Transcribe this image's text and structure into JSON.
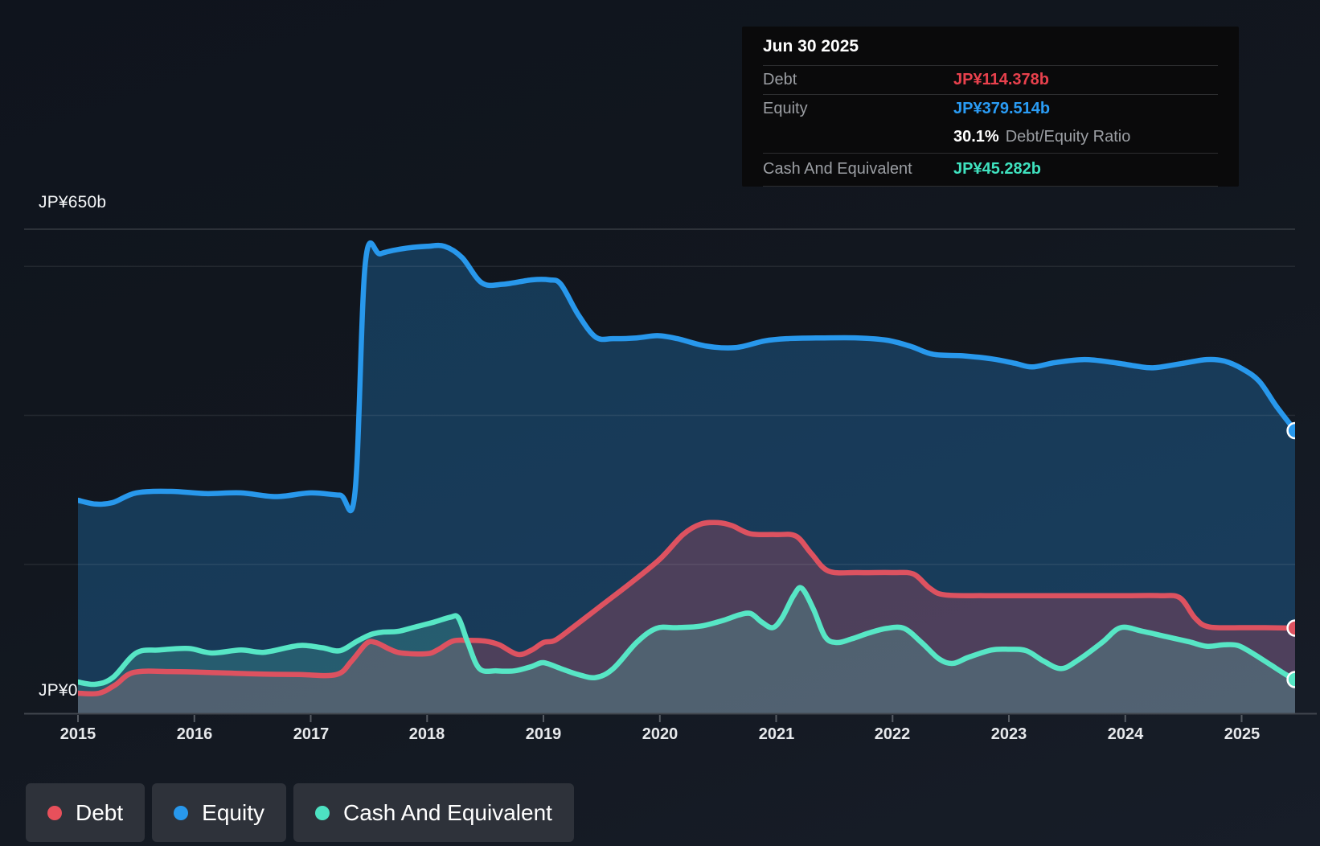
{
  "tooltip": {
    "date": "Jun 30 2025",
    "debt": {
      "label": "Debt",
      "value": "JP¥114.378b"
    },
    "equity": {
      "label": "Equity",
      "value": "JP¥379.514b"
    },
    "ratio": {
      "value": "30.1%",
      "label": "Debt/Equity Ratio"
    },
    "cash": {
      "label": "Cash And Equivalent",
      "value": "JP¥45.282b"
    }
  },
  "axis": {
    "y_top_label": "JP¥650b",
    "y_zero_label": "JP¥0",
    "years": [
      2015,
      2016,
      2017,
      2018,
      2019,
      2020,
      2021,
      2022,
      2023,
      2024,
      2025
    ]
  },
  "legend": {
    "items": [
      {
        "label": "Debt",
        "color": "#e8505b"
      },
      {
        "label": "Equity",
        "color": "#2898ec"
      },
      {
        "label": "Cash And Equivalent",
        "color": "#4de2c2"
      }
    ]
  },
  "colors": {
    "debt_line": "#dd5260",
    "debt_fill": "rgba(222,76,96,0.27)",
    "equity_line": "#2898ec",
    "equity_fill": "rgba(38,140,219,0.30)",
    "cash_line": "#57e6c5",
    "cash_fill": "rgba(95,231,201,0.20)",
    "grid_major": "rgba(255,255,255,0.16)",
    "grid_minor": "rgba(255,255,255,0.08)",
    "axis_line": "#41464e",
    "tick": "#565b63"
  },
  "chart_data": {
    "type": "area",
    "unit": "JP¥ billions",
    "x_range": [
      2015,
      2025.46
    ],
    "y_range": [
      0,
      650
    ],
    "grid": "horizontal gridlines at 650, 600, 400, 200 (JP¥b); x ticks each year",
    "gridlines_b": [
      650,
      600,
      400,
      200
    ],
    "legend_position": "bottom-left",
    "end_markers": true,
    "series": [
      {
        "name": "Equity",
        "final_value_b": 379.514,
        "points": [
          [
            2015.0,
            286
          ],
          [
            2015.15,
            281
          ],
          [
            2015.3,
            283
          ],
          [
            2015.5,
            296
          ],
          [
            2015.8,
            298
          ],
          [
            2016.1,
            295
          ],
          [
            2016.4,
            296
          ],
          [
            2016.7,
            291
          ],
          [
            2017.0,
            296
          ],
          [
            2017.25,
            293
          ],
          [
            2017.38,
            296
          ],
          [
            2017.47,
            605
          ],
          [
            2017.6,
            617
          ],
          [
            2017.8,
            624
          ],
          [
            2018.0,
            627
          ],
          [
            2018.15,
            627
          ],
          [
            2018.3,
            612
          ],
          [
            2018.47,
            578
          ],
          [
            2018.65,
            576
          ],
          [
            2018.9,
            582
          ],
          [
            2019.05,
            582
          ],
          [
            2019.15,
            576
          ],
          [
            2019.3,
            535
          ],
          [
            2019.45,
            505
          ],
          [
            2019.6,
            503
          ],
          [
            2019.8,
            504
          ],
          [
            2019.98,
            507
          ],
          [
            2020.15,
            503
          ],
          [
            2020.4,
            493
          ],
          [
            2020.65,
            491
          ],
          [
            2020.9,
            500
          ],
          [
            2021.1,
            503
          ],
          [
            2021.4,
            504
          ],
          [
            2021.7,
            504
          ],
          [
            2021.95,
            501
          ],
          [
            2022.15,
            493
          ],
          [
            2022.35,
            482
          ],
          [
            2022.6,
            480
          ],
          [
            2022.85,
            476
          ],
          [
            2023.05,
            470
          ],
          [
            2023.2,
            465
          ],
          [
            2023.4,
            471
          ],
          [
            2023.65,
            475
          ],
          [
            2023.9,
            471
          ],
          [
            2024.1,
            466
          ],
          [
            2024.25,
            464
          ],
          [
            2024.5,
            470
          ],
          [
            2024.7,
            475
          ],
          [
            2024.85,
            473
          ],
          [
            2025.0,
            463
          ],
          [
            2025.15,
            446
          ],
          [
            2025.3,
            412
          ],
          [
            2025.46,
            379.5
          ]
        ]
      },
      {
        "name": "Debt",
        "final_value_b": 114.378,
        "points": [
          [
            2015.0,
            27
          ],
          [
            2015.18,
            27
          ],
          [
            2015.32,
            38
          ],
          [
            2015.48,
            55
          ],
          [
            2015.8,
            56
          ],
          [
            2016.1,
            55
          ],
          [
            2016.5,
            53
          ],
          [
            2016.9,
            52
          ],
          [
            2017.22,
            52
          ],
          [
            2017.35,
            70
          ],
          [
            2017.48,
            94
          ],
          [
            2017.56,
            95
          ],
          [
            2017.68,
            86
          ],
          [
            2017.78,
            81
          ],
          [
            2018.0,
            80
          ],
          [
            2018.1,
            86
          ],
          [
            2018.22,
            97
          ],
          [
            2018.35,
            98
          ],
          [
            2018.5,
            97
          ],
          [
            2018.62,
            92
          ],
          [
            2018.78,
            79
          ],
          [
            2018.9,
            85
          ],
          [
            2019.0,
            95
          ],
          [
            2019.1,
            98
          ],
          [
            2019.25,
            115
          ],
          [
            2019.5,
            145
          ],
          [
            2019.75,
            175
          ],
          [
            2020.0,
            207
          ],
          [
            2020.2,
            240
          ],
          [
            2020.35,
            254
          ],
          [
            2020.5,
            256
          ],
          [
            2020.62,
            252
          ],
          [
            2020.78,
            241
          ],
          [
            2021.0,
            240
          ],
          [
            2021.17,
            238
          ],
          [
            2021.3,
            215
          ],
          [
            2021.45,
            191
          ],
          [
            2021.7,
            189
          ],
          [
            2022.0,
            189
          ],
          [
            2022.18,
            187
          ],
          [
            2022.32,
            168
          ],
          [
            2022.45,
            159
          ],
          [
            2022.8,
            158
          ],
          [
            2023.2,
            158
          ],
          [
            2023.6,
            158
          ],
          [
            2024.0,
            158
          ],
          [
            2024.3,
            158
          ],
          [
            2024.47,
            155
          ],
          [
            2024.6,
            128
          ],
          [
            2024.72,
            116
          ],
          [
            2025.0,
            115
          ],
          [
            2025.2,
            115
          ],
          [
            2025.46,
            114.4
          ]
        ]
      },
      {
        "name": "Cash And Equivalent",
        "final_value_b": 45.282,
        "points": [
          [
            2015.0,
            42
          ],
          [
            2015.15,
            39
          ],
          [
            2015.3,
            48
          ],
          [
            2015.5,
            81
          ],
          [
            2015.7,
            85
          ],
          [
            2015.95,
            87
          ],
          [
            2016.15,
            81
          ],
          [
            2016.4,
            85
          ],
          [
            2016.6,
            82
          ],
          [
            2016.9,
            91
          ],
          [
            2017.1,
            88
          ],
          [
            2017.25,
            84
          ],
          [
            2017.4,
            97
          ],
          [
            2017.52,
            106
          ],
          [
            2017.62,
            109
          ],
          [
            2017.75,
            110
          ],
          [
            2017.9,
            116
          ],
          [
            2018.05,
            122
          ],
          [
            2018.2,
            129
          ],
          [
            2018.27,
            128
          ],
          [
            2018.35,
            95
          ],
          [
            2018.45,
            60
          ],
          [
            2018.6,
            57
          ],
          [
            2018.75,
            57
          ],
          [
            2018.9,
            63
          ],
          [
            2019.0,
            68
          ],
          [
            2019.15,
            60
          ],
          [
            2019.3,
            52
          ],
          [
            2019.45,
            48
          ],
          [
            2019.6,
            60
          ],
          [
            2019.8,
            95
          ],
          [
            2019.97,
            114
          ],
          [
            2020.15,
            115
          ],
          [
            2020.35,
            117
          ],
          [
            2020.55,
            125
          ],
          [
            2020.68,
            132
          ],
          [
            2020.78,
            134
          ],
          [
            2020.88,
            122
          ],
          [
            2020.97,
            115
          ],
          [
            2021.05,
            128
          ],
          [
            2021.15,
            158
          ],
          [
            2021.22,
            168
          ],
          [
            2021.32,
            140
          ],
          [
            2021.42,
            103
          ],
          [
            2021.52,
            95
          ],
          [
            2021.65,
            100
          ],
          [
            2021.8,
            108
          ],
          [
            2021.95,
            114
          ],
          [
            2022.1,
            114
          ],
          [
            2022.25,
            95
          ],
          [
            2022.4,
            73
          ],
          [
            2022.52,
            67
          ],
          [
            2022.65,
            75
          ],
          [
            2022.85,
            85
          ],
          [
            2023.0,
            86
          ],
          [
            2023.15,
            84
          ],
          [
            2023.3,
            70
          ],
          [
            2023.45,
            60
          ],
          [
            2023.6,
            72
          ],
          [
            2023.8,
            95
          ],
          [
            2023.96,
            115
          ],
          [
            2024.15,
            110
          ],
          [
            2024.35,
            103
          ],
          [
            2024.55,
            96
          ],
          [
            2024.7,
            90
          ],
          [
            2024.85,
            92
          ],
          [
            2024.97,
            91
          ],
          [
            2025.1,
            80
          ],
          [
            2025.25,
            65
          ],
          [
            2025.38,
            52
          ],
          [
            2025.46,
            45.3
          ]
        ]
      }
    ]
  }
}
